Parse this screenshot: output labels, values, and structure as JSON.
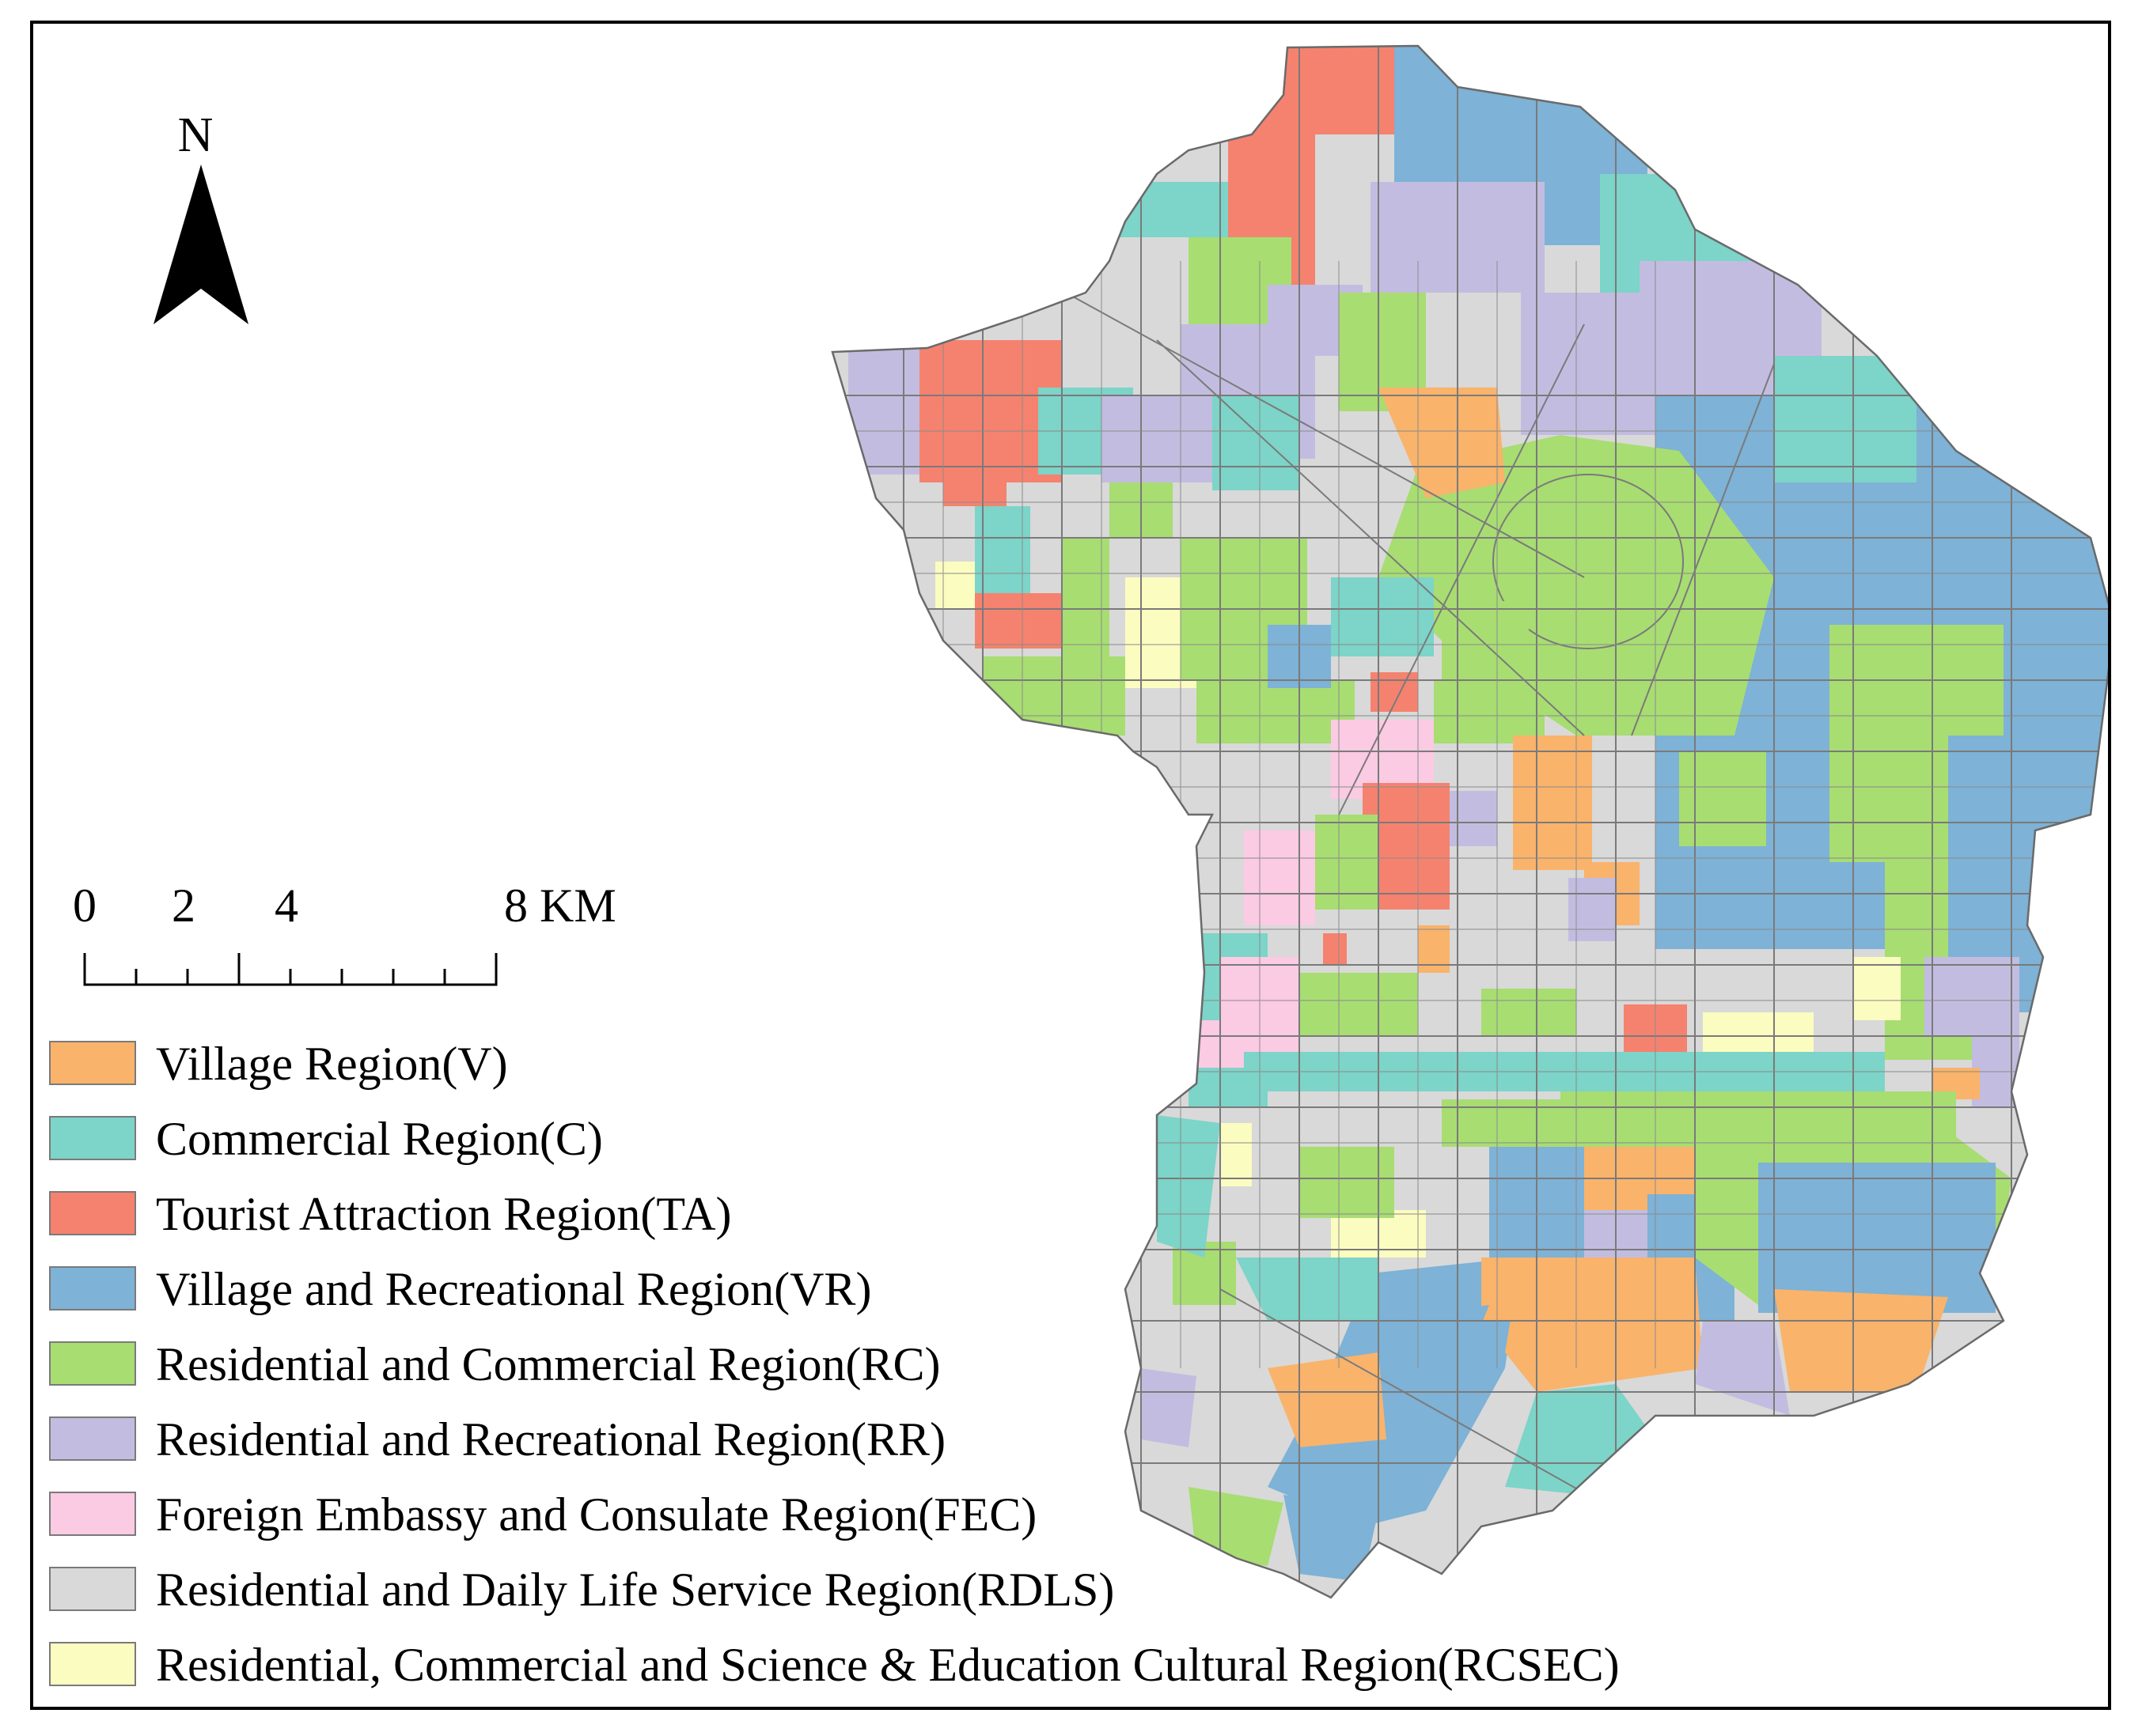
{
  "north_arrow": {
    "label": "N"
  },
  "scale": {
    "labels": [
      "0",
      "2",
      "4",
      "8 KM"
    ]
  },
  "colors": {
    "V": "#f9b36b",
    "C": "#7dd4c8",
    "TA": "#f5826f",
    "VR": "#7eb2d6",
    "RC": "#a8dd72",
    "RR": "#c2bde0",
    "FEC": "#fbcae3",
    "RDLS": "#d9d9d9",
    "RCSEC": "#fbfcbf",
    "boundary": "#7a7a7a"
  },
  "legend": [
    {
      "key": "V",
      "label": "Village Region(V)"
    },
    {
      "key": "C",
      "label": "Commercial Region(C)"
    },
    {
      "key": "TA",
      "label": "Tourist Attraction Region(TA)"
    },
    {
      "key": "VR",
      "label": "Village and Recreational Region(VR)"
    },
    {
      "key": "RC",
      "label": "Residential and Commercial Region(RC)"
    },
    {
      "key": "RR",
      "label": "Residential and Recreational Region(RR)"
    },
    {
      "key": "FEC",
      "label": "Foreign Embassy and Consulate Region(FEC)"
    },
    {
      "key": "RDLS",
      "label": "Residential and Daily Life Service Region(RDLS)"
    },
    {
      "key": "RCSEC",
      "label": "Residential, Commercial and Science & Education Cultural Region(RCSEC)"
    }
  ]
}
